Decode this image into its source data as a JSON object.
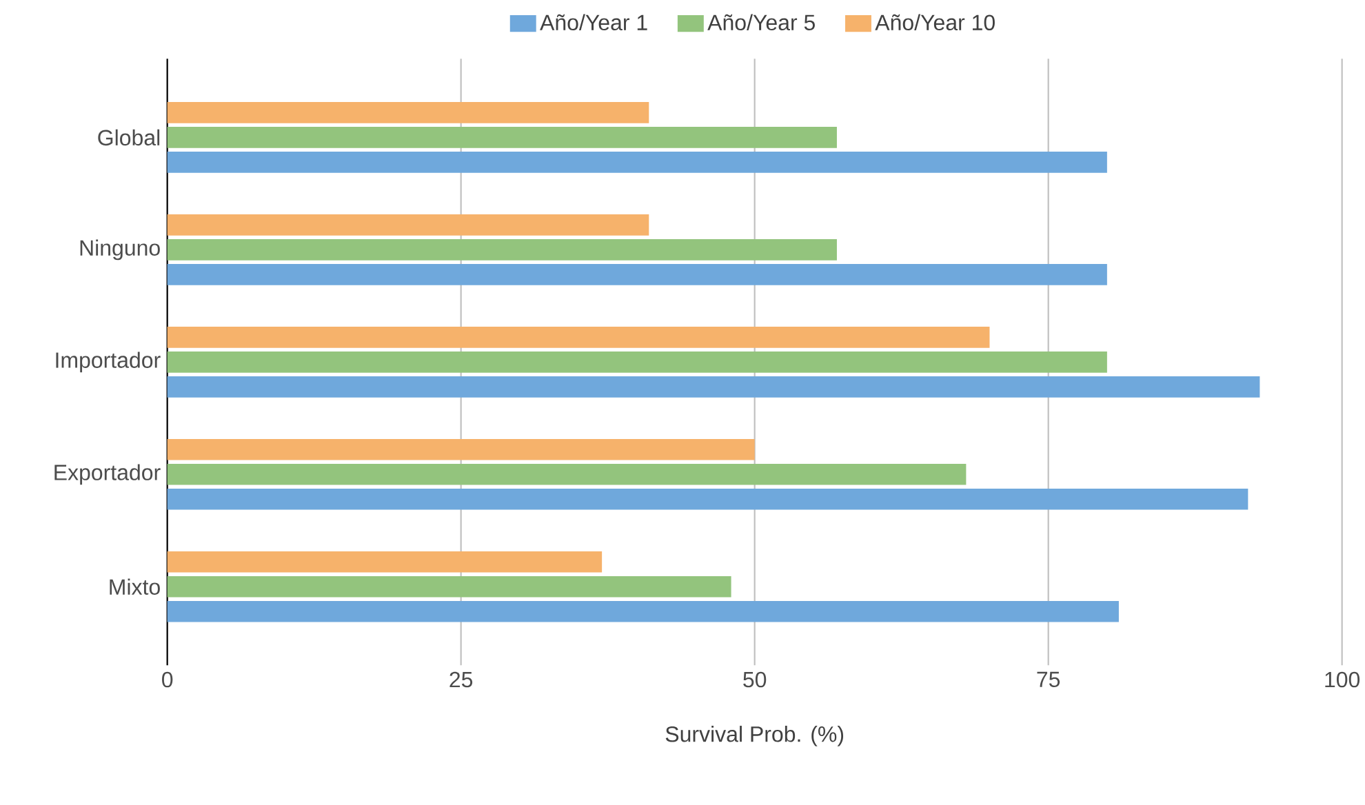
{
  "chart_data": {
    "type": "bar",
    "orientation": "horizontal",
    "xlabel": "Survival Prob. (%)",
    "categories": [
      "Global",
      "Ninguno",
      "Importador",
      "Exportador",
      "Mixto"
    ],
    "series": [
      {
        "name": "Año/Year 1",
        "color": "#6fa8dc",
        "values": [
          80,
          80,
          93,
          92,
          81
        ]
      },
      {
        "name": "Año/Year 5",
        "color": "#93c47d",
        "values": [
          57,
          57,
          80,
          68,
          48
        ]
      },
      {
        "name": "Año/Year 10",
        "color": "#f6b26b",
        "values": [
          41,
          41,
          70,
          50,
          37
        ]
      }
    ],
    "xlim": [
      0,
      100
    ],
    "xticks": [
      0,
      25,
      50,
      75,
      100
    ],
    "grid": "x",
    "legend": "top"
  }
}
